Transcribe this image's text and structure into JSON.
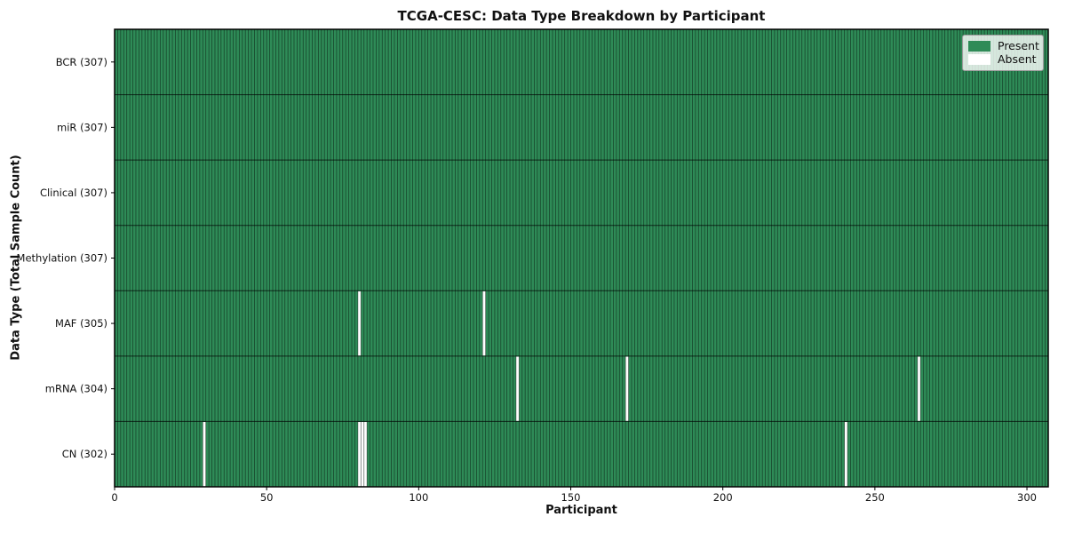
{
  "chart_data": {
    "type": "heatmap",
    "title": "TCGA-CESC: Data Type Breakdown by Participant",
    "xlabel": "Participant",
    "ylabel": "Data Type (Total Sample Count)",
    "n_participants": 307,
    "x_ticks": [
      0,
      50,
      100,
      150,
      200,
      250,
      300
    ],
    "x_range": [
      0,
      307
    ],
    "grid": false,
    "legend_position": "upper right",
    "legend": [
      {
        "label": "Present",
        "color": "#2e8b57"
      },
      {
        "label": "Absent",
        "color": "#ffffff"
      }
    ],
    "colors": {
      "present": "#2e8b57",
      "absent": "#ffffff"
    },
    "rows": [
      {
        "label": "BCR (307)",
        "data_type": "BCR",
        "total": 307,
        "absent_participants": []
      },
      {
        "label": "miR (307)",
        "data_type": "miR",
        "total": 307,
        "absent_participants": []
      },
      {
        "label": "Clinical (307)",
        "data_type": "Clinical",
        "total": 307,
        "absent_participants": []
      },
      {
        "label": "Methylation (307)",
        "data_type": "Methylation",
        "total": 307,
        "absent_participants": []
      },
      {
        "label": "MAF (305)",
        "data_type": "MAF",
        "total": 305,
        "absent_participants": [
          80,
          121
        ]
      },
      {
        "label": "mRNA (304)",
        "data_type": "mRNA",
        "total": 304,
        "absent_participants": [
          132,
          168,
          264
        ]
      },
      {
        "label": "CN (302)",
        "data_type": "CN",
        "total": 302,
        "absent_participants": [
          29,
          80,
          81,
          82,
          240
        ]
      }
    ]
  }
}
